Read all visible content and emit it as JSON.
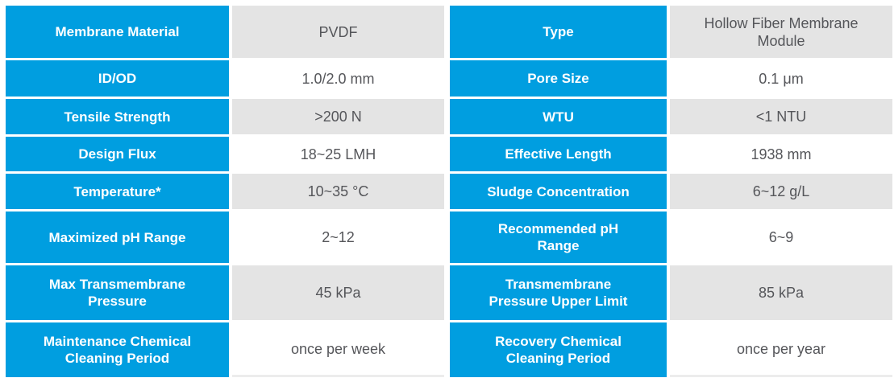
{
  "colors": {
    "header_blue": "#009EE0",
    "value_row_gray": "#E4E4E4",
    "value_row_white": "#FFFFFF",
    "label_text": "#FFFFFF",
    "value_text": "#55565A"
  },
  "table": {
    "rows": [
      {
        "left_label": "Membrane Material",
        "left_value": "PVDF",
        "right_label": "Type",
        "right_value": "Hollow Fiber Membrane Module"
      },
      {
        "left_label": "ID/OD",
        "left_value": "1.0/2.0 mm",
        "right_label": "Pore Size",
        "right_value": "0.1 μm"
      },
      {
        "left_label": "Tensile Strength",
        "left_value": ">200 N",
        "right_label": "WTU",
        "right_value": "<1 NTU"
      },
      {
        "left_label": "Design Flux",
        "left_value": "18~25 LMH",
        "right_label": "Effective Length",
        "right_value": "1938 mm"
      },
      {
        "left_label": "Temperature*",
        "left_value": "10~35 °C",
        "right_label": "Sludge Concentration",
        "right_value": "6~12 g/L"
      },
      {
        "left_label": "Maximized pH Range",
        "left_value": "2~12",
        "right_label": "Recommended pH Range",
        "right_value": "6~9"
      },
      {
        "left_label": "Max Transmembrane Pressure",
        "left_value": "45 kPa",
        "right_label": "Transmembrane Pressure Upper Limit",
        "right_value": "85 kPa"
      },
      {
        "left_label": "Maintenance Chemical Cleaning Period",
        "left_value": "once per week",
        "right_label": "Recovery Chemical Cleaning Period",
        "right_value": "once per year"
      }
    ]
  }
}
